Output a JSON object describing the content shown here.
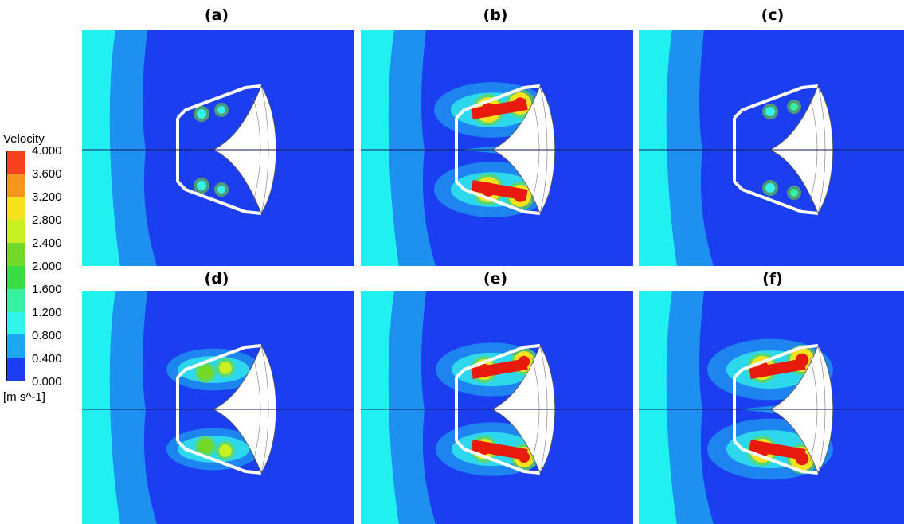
{
  "panels": [
    {
      "label": "(a)"
    },
    {
      "label": "(b)"
    },
    {
      "label": "(c)"
    },
    {
      "label": "(d)"
    },
    {
      "label": "(e)"
    },
    {
      "label": "(f)"
    }
  ],
  "legend": {
    "title": "Velocity",
    "units": "[m s^-1]",
    "ticks": [
      "4.000",
      "3.600",
      "3.200",
      "2.800",
      "2.400",
      "2.000",
      "1.600",
      "1.200",
      "0.800",
      "0.400",
      "0.000"
    ],
    "colors": [
      "#f5421c",
      "#f7961e",
      "#f7e21e",
      "#c8ef22",
      "#72d929",
      "#37dd41",
      "#38f0a2",
      "#33f4ec",
      "#1da7f0",
      "#1a3ef0"
    ]
  },
  "colors": {
    "far_field": "#20f0f0",
    "mid_field": "#1e90f0",
    "core_field": "#1a3ef0",
    "hot": "#e81a0e"
  }
}
